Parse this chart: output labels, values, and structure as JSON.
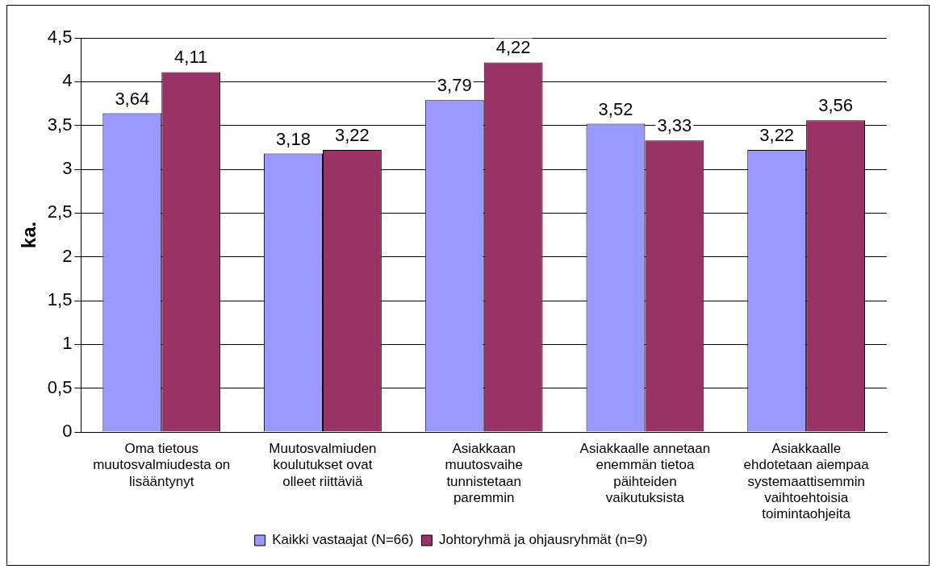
{
  "chart_data": {
    "type": "bar",
    "ylabel": "ka.",
    "categories": [
      "Oma tietous muutosvalmiudesta on lisääntynyt",
      "Muutosvalmiuden koulutukset ovat olleet riittäviä",
      "Asiakkaan muutosvaihe tunnistetaan paremmin",
      "Asiakkaalle annetaan enemmän tietoa päihteiden vaikutuksista",
      "Asiakkaalle ehdotetaan aiempaa systemaattisemmin vaihtoehtoisia toimintaohjeita"
    ],
    "series": [
      {
        "name": "Kaikki vastaajat (N=66)",
        "color": "#9999ff",
        "values": [
          3.64,
          3.18,
          3.79,
          3.52,
          3.22
        ],
        "value_labels": [
          "3,64",
          "3,18",
          "3,79",
          "3,52",
          "3,22"
        ]
      },
      {
        "name": "Johtoryhmä ja ohjausryhmät (n=9)",
        "color": "#993366",
        "values": [
          4.11,
          3.22,
          4.22,
          3.33,
          3.56
        ],
        "value_labels": [
          "4,11",
          "3,22",
          "4,22",
          "3,33",
          "3,56"
        ]
      }
    ],
    "ylim": [
      0,
      4.5
    ],
    "yticks": [
      0,
      {
        "value": 0.5,
        "label": "0,5"
      },
      1,
      {
        "value": 1.5,
        "label": "1,5"
      },
      2,
      {
        "value": 2.5,
        "label": "2,5"
      },
      3,
      {
        "value": 3.5,
        "label": "3,5"
      },
      4,
      {
        "value": 4.5,
        "label": "4,5"
      }
    ],
    "grid": "y",
    "legend": "bottom"
  }
}
